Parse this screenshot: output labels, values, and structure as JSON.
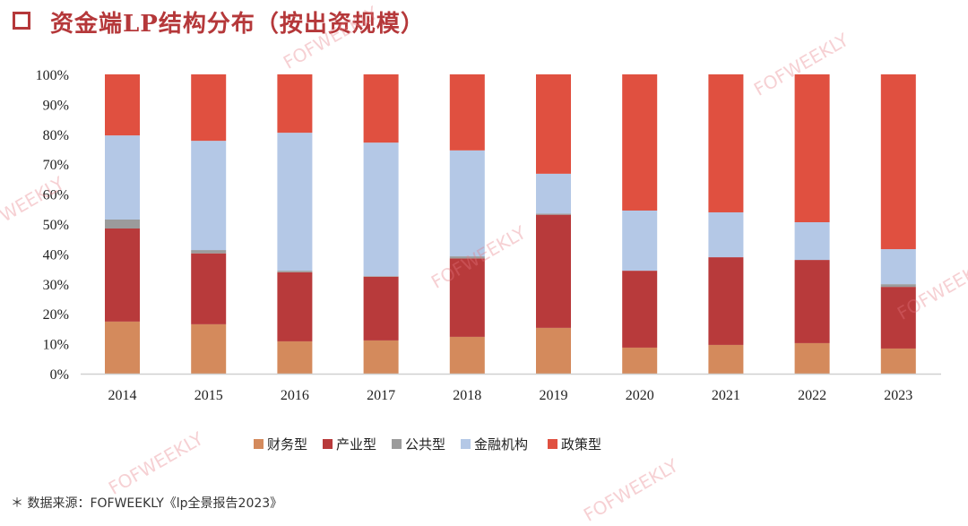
{
  "header": {
    "title": "资金端LP结构分布（按出资规模）",
    "icon": "square-outline-icon"
  },
  "watermark": "FOFWEEKLY",
  "source": "＊ 数据来源：FOFWEEKLY《lp全景报告2023》",
  "chart_data": {
    "type": "bar",
    "stacked": true,
    "categories": [
      "2014",
      "2015",
      "2016",
      "2017",
      "2018",
      "2019",
      "2020",
      "2021",
      "2022",
      "2023"
    ],
    "series": [
      {
        "name": "财务型",
        "color": "#d48a5c",
        "values": [
          17.4,
          16.5,
          10.8,
          11.1,
          12.3,
          15.3,
          8.7,
          9.6,
          10.2,
          8.4
        ]
      },
      {
        "name": "产业型",
        "color": "#b83a3b",
        "values": [
          31.1,
          23.7,
          23.1,
          21.3,
          26.2,
          37.8,
          25.7,
          29.3,
          27.8,
          20.6
        ]
      },
      {
        "name": "公共型",
        "color": "#9b9b9b",
        "values": [
          3.0,
          1.1,
          0.5,
          0.2,
          0.7,
          0.4,
          0.0,
          0.0,
          0.0,
          0.9
        ]
      },
      {
        "name": "金融机构",
        "color": "#b4c8e6",
        "values": [
          28.1,
          36.5,
          46.1,
          44.6,
          35.4,
          13.3,
          20.1,
          15.0,
          12.6,
          11.7
        ]
      },
      {
        "name": "政策型",
        "color": "#e05040",
        "values": [
          20.4,
          22.2,
          19.5,
          22.8,
          25.4,
          33.2,
          45.5,
          46.1,
          49.4,
          58.4
        ]
      }
    ],
    "yticks": [
      "0%",
      "10%",
      "20%",
      "30%",
      "40%",
      "50%",
      "60%",
      "70%",
      "80%",
      "90%",
      "100%"
    ],
    "ylim": [
      0,
      100
    ],
    "grid": false,
    "legend": "bottom"
  }
}
